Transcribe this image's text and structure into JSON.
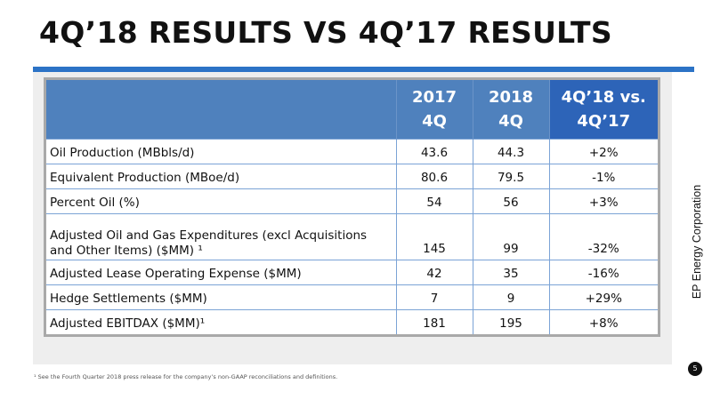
{
  "title": "4Q’18 RESULTS VS 4Q’17 RESULTS",
  "table": {
    "headers": {
      "label": "",
      "col1_line1": "2017",
      "col1_line2": "4Q",
      "col2_line1": "2018",
      "col2_line2": "4Q",
      "col3_line1": "4Q’18 vs.",
      "col3_line2": "4Q’17"
    },
    "rows": [
      {
        "label": "Oil Production (MBbls/d)",
        "v2017": "43.6",
        "v2018": "44.3",
        "change": "+2%"
      },
      {
        "label": "Equivalent Production (MBoe/d)",
        "v2017": "80.6",
        "v2018": "79.5",
        "change": "-1%"
      },
      {
        "label": "Percent Oil (%)",
        "v2017": "54",
        "v2018": "56",
        "change": "+3%"
      },
      {
        "label": "Adjusted Oil and Gas Expenditures (excl Acquisitions and Other Items) ($MM) ¹",
        "v2017": "145",
        "v2018": "99",
        "change": "-32%"
      },
      {
        "label": "Adjusted Lease Operating Expense ($MM)",
        "v2017": "42",
        "v2018": "35",
        "change": "-16%"
      },
      {
        "label": "Hedge Settlements ($MM)",
        "v2017": "7",
        "v2018": "9",
        "change": "+29%"
      },
      {
        "label": "Adjusted EBITDAX ($MM)¹",
        "v2017": "181",
        "v2018": "195",
        "change": "+8%"
      }
    ]
  },
  "side_label": "EP Energy Corporation",
  "page_number": "5",
  "footnote": "¹ See the Fourth Quarter 2018 press release for the company’s non-GAAP reconciliations and definitions."
}
